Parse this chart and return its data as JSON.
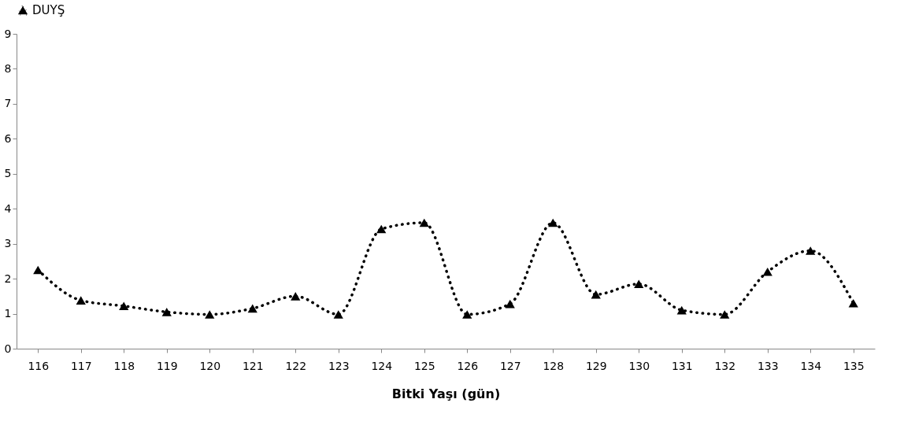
{
  "chart_data": {
    "type": "line",
    "xlabel": "Bitki Yaşı (gün)",
    "categories": [
      "116",
      "117",
      "118",
      "119",
      "120",
      "121",
      "122",
      "123",
      "124",
      "125",
      "126",
      "127",
      "128",
      "129",
      "130",
      "131",
      "132",
      "133",
      "134",
      "135"
    ],
    "series": [
      {
        "name": "DUYŞ",
        "color": "#000000",
        "values": [
          2.25,
          1.38,
          1.22,
          1.05,
          0.98,
          1.15,
          1.5,
          0.98,
          3.42,
          3.6,
          0.98,
          1.28,
          3.6,
          1.55,
          1.85,
          1.1,
          0.98,
          2.2,
          2.8,
          1.3
        ]
      }
    ],
    "ylim": [
      0,
      9
    ],
    "yticks": [
      0,
      1,
      2,
      3,
      4,
      5,
      6,
      7,
      8,
      9
    ],
    "grid": false,
    "legend": "top",
    "marker": "triangle",
    "line_style": "dotted"
  }
}
